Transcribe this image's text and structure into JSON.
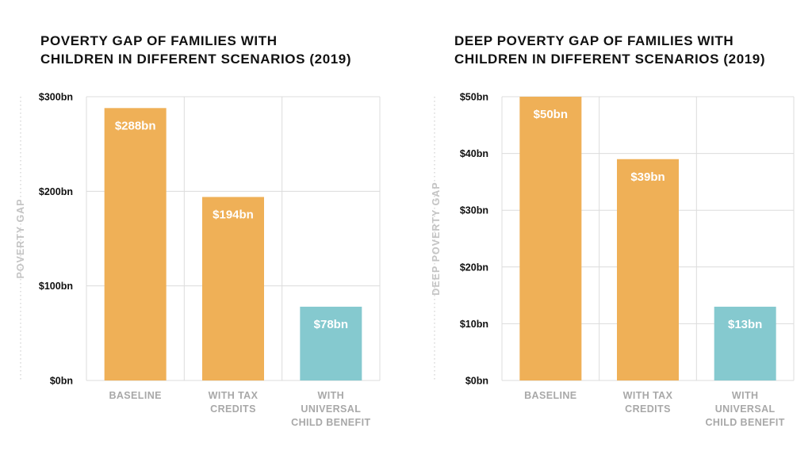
{
  "colors": {
    "baseline": "#efb057",
    "policy": "#85c9cf",
    "grid": "#dcdcdc",
    "axis_label": "#c4c4c4",
    "category": "#a8a8a8"
  },
  "chart_data": [
    {
      "type": "bar",
      "title": "POVERTY GAP OF FAMILIES WITH\nCHILDREN IN DIFFERENT SCENARIOS (2019)",
      "ylabel": "POVERTY GAP",
      "ylim": [
        0,
        300
      ],
      "yticks": [
        0,
        100,
        200,
        300
      ],
      "ytick_labels": [
        "$0bn",
        "$100bn",
        "$200bn",
        "$300bn"
      ],
      "categories": [
        "BASELINE",
        "WITH TAX\nCREDITS",
        "WITH\nUNIVERSAL\nCHILD BENEFIT"
      ],
      "values": [
        288,
        194,
        78
      ],
      "data_labels": [
        "$288bn",
        "$194bn",
        "$78bn"
      ],
      "bar_colors": [
        "#efb057",
        "#efb057",
        "#85c9cf"
      ],
      "grid": true
    },
    {
      "type": "bar",
      "title": "DEEP POVERTY GAP OF FAMILIES WITH\nCHILDREN IN DIFFERENT SCENARIOS (2019)",
      "ylabel": "DEEP POVERTY GAP",
      "ylim": [
        0,
        50
      ],
      "yticks": [
        0,
        10,
        20,
        30,
        40,
        50
      ],
      "ytick_labels": [
        "$0bn",
        "$10bn",
        "$20bn",
        "$30bn",
        "$40bn",
        "$50bn"
      ],
      "categories": [
        "BASELINE",
        "WITH TAX\nCREDITS",
        "WITH\nUNIVERSAL\nCHILD BENEFIT"
      ],
      "values": [
        50,
        39,
        13
      ],
      "data_labels": [
        "$50bn",
        "$39bn",
        "$13bn"
      ],
      "bar_colors": [
        "#efb057",
        "#efb057",
        "#85c9cf"
      ],
      "grid": true
    }
  ]
}
